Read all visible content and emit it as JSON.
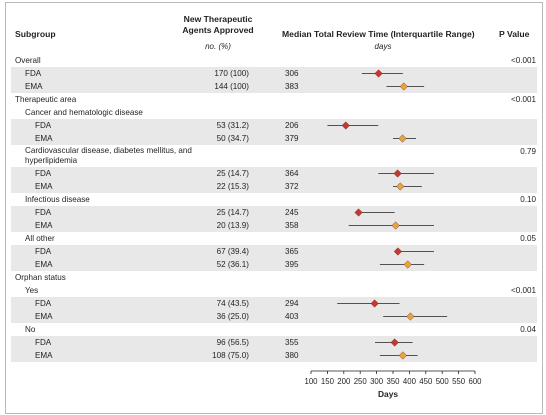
{
  "headers": {
    "subgroup": "Subgroup",
    "agents_line1": "New Therapeutic",
    "agents_line2": "Agents Approved",
    "agents_unit": "no. (%)",
    "median": "Median Total Review Time (Interquartile Range)",
    "median_unit": "days",
    "pvalue": "P Value"
  },
  "rows": [
    {
      "label": "Overall",
      "level": 0,
      "pvalue": "<0.001"
    },
    {
      "label": "FDA",
      "level": 1,
      "count": "170 (100)",
      "median": "306",
      "agency": "FDA"
    },
    {
      "label": "EMA",
      "level": 1,
      "count": "144 (100)",
      "median": "383",
      "agency": "EMA"
    },
    {
      "label": "Therapeutic area",
      "level": 0,
      "pvalue": "<0.001"
    },
    {
      "label": "Cancer and hematologic disease",
      "level": 1
    },
    {
      "label": "FDA",
      "level": 2,
      "count": "53 (31.2)",
      "median": "206",
      "agency": "FDA"
    },
    {
      "label": "EMA",
      "level": 2,
      "count": "50 (34.7)",
      "median": "379",
      "agency": "EMA"
    },
    {
      "label": "Cardiovascular disease, diabetes mellitus, and hyperlipidemia",
      "level": 1,
      "pvalue": "0.79",
      "tall": true
    },
    {
      "label": "FDA",
      "level": 2,
      "count": "25 (14.7)",
      "median": "364",
      "agency": "FDA"
    },
    {
      "label": "EMA",
      "level": 2,
      "count": "22 (15.3)",
      "median": "372",
      "agency": "EMA"
    },
    {
      "label": "Infectious disease",
      "level": 1,
      "pvalue": "0.10"
    },
    {
      "label": "FDA",
      "level": 2,
      "count": "25 (14.7)",
      "median": "245",
      "agency": "FDA"
    },
    {
      "label": "EMA",
      "level": 2,
      "count": "20 (13.9)",
      "median": "358",
      "agency": "EMA"
    },
    {
      "label": "All other",
      "level": 1,
      "pvalue": "0.05"
    },
    {
      "label": "FDA",
      "level": 2,
      "count": "67 (39.4)",
      "median": "365",
      "agency": "FDA"
    },
    {
      "label": "EMA",
      "level": 2,
      "count": "52 (36.1)",
      "median": "395",
      "agency": "EMA"
    },
    {
      "label": "Orphan status",
      "level": 0
    },
    {
      "label": "Yes",
      "level": 1,
      "pvalue": "<0.001"
    },
    {
      "label": "FDA",
      "level": 2,
      "count": "74 (43.5)",
      "median": "294",
      "agency": "FDA"
    },
    {
      "label": "EMA",
      "level": 2,
      "count": "36 (25.0)",
      "median": "403",
      "agency": "EMA"
    },
    {
      "label": "No",
      "level": 1,
      "pvalue": "0.04"
    },
    {
      "label": "FDA",
      "level": 2,
      "count": "96 (56.5)",
      "median": "355",
      "agency": "FDA"
    },
    {
      "label": "EMA",
      "level": 2,
      "count": "108 (75.0)",
      "median": "380",
      "agency": "EMA"
    }
  ],
  "chart_data": {
    "type": "forest",
    "xlabel": "Days",
    "xlim": [
      100,
      600
    ],
    "xticks": [
      100,
      150,
      200,
      250,
      300,
      350,
      400,
      450,
      500,
      550,
      600
    ],
    "series_colors": {
      "FDA": "#c8372d",
      "EMA": "#e8a33a"
    },
    "points": [
      {
        "row": 1,
        "median": 306,
        "low": 255,
        "high": 380
      },
      {
        "row": 2,
        "median": 383,
        "low": 330,
        "high": 445
      },
      {
        "row": 5,
        "median": 206,
        "low": 150,
        "high": 305
      },
      {
        "row": 6,
        "median": 379,
        "low": 350,
        "high": 420
      },
      {
        "row": 8,
        "median": 364,
        "low": 305,
        "high": 475
      },
      {
        "row": 9,
        "median": 372,
        "low": 350,
        "high": 438
      },
      {
        "row": 11,
        "median": 245,
        "low": 240,
        "high": 355
      },
      {
        "row": 12,
        "median": 358,
        "low": 215,
        "high": 475
      },
      {
        "row": 14,
        "median": 365,
        "low": 355,
        "high": 475
      },
      {
        "row": 15,
        "median": 395,
        "low": 310,
        "high": 445
      },
      {
        "row": 18,
        "median": 294,
        "low": 180,
        "high": 370
      },
      {
        "row": 19,
        "median": 403,
        "low": 320,
        "high": 515
      },
      {
        "row": 21,
        "median": 355,
        "low": 295,
        "high": 410
      },
      {
        "row": 22,
        "median": 380,
        "low": 310,
        "high": 425
      }
    ]
  }
}
